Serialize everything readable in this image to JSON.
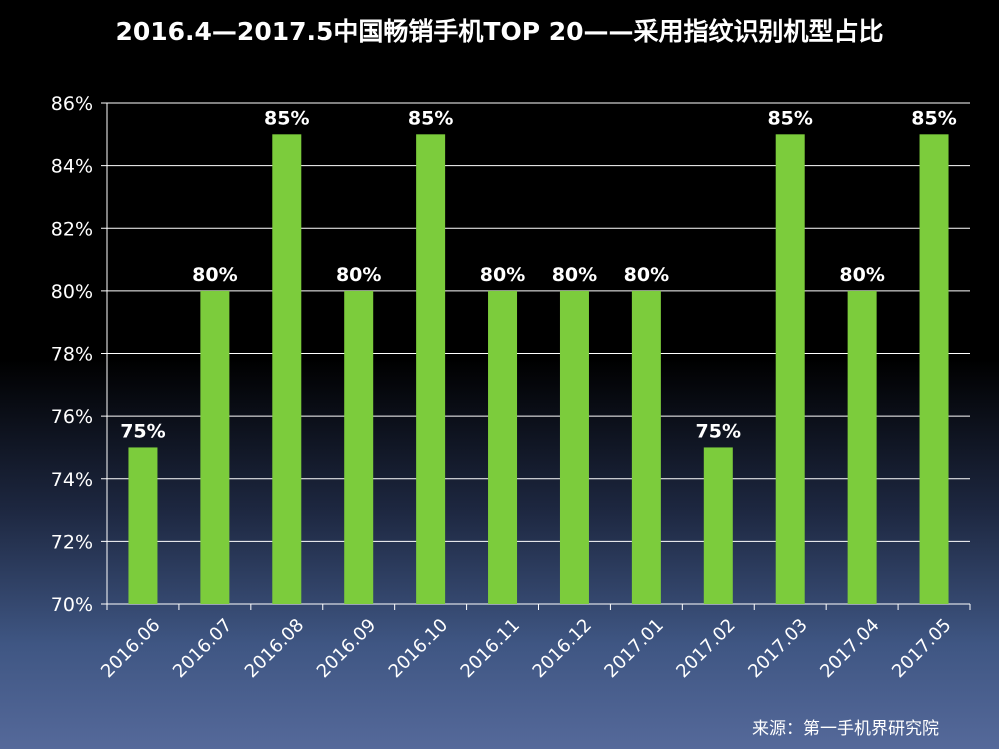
{
  "chart_data": {
    "type": "bar",
    "title": "2016.4—2017.5中国畅销手机TOP 20——采用指纹识别机型占比",
    "categories": [
      "2016.06",
      "2016.07",
      "2016.08",
      "2016.09",
      "2016.10",
      "2016.11",
      "2016.12",
      "2017.01",
      "2017.02",
      "2017.03",
      "2017.04",
      "2017.05"
    ],
    "values": [
      75,
      80,
      85,
      80,
      85,
      80,
      80,
      80,
      75,
      85,
      80,
      85
    ],
    "data_labels": [
      "75%",
      "80%",
      "85%",
      "80%",
      "85%",
      "80%",
      "80%",
      "80%",
      "75%",
      "85%",
      "80%",
      "85%"
    ],
    "ylim": [
      70,
      86
    ],
    "yticks": [
      "70%",
      "72%",
      "74%",
      "76%",
      "78%",
      "80%",
      "82%",
      "84%",
      "86%"
    ],
    "xlabel": "",
    "ylabel": "",
    "grid": true,
    "bar_color": "#7ccc3c"
  },
  "source": "来源：第一手机界研究院"
}
